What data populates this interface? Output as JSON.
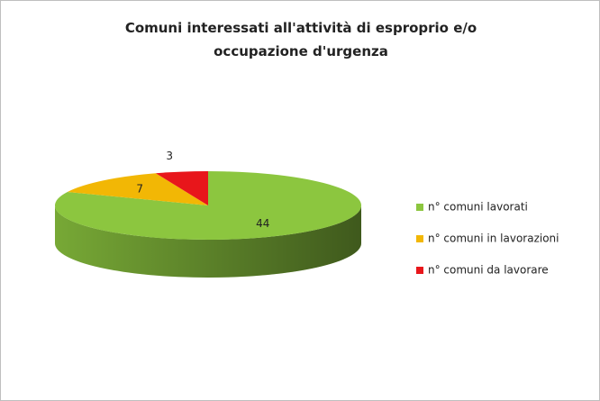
{
  "chart_data": {
    "type": "pie",
    "title": "Comuni interessati all'attività di esproprio e/o occupazione d'urgenza",
    "categories": [
      "n° comuni lavorati",
      "n° comuni in lavorazioni",
      "n° comuni da lavorare"
    ],
    "values": [
      44,
      7,
      3
    ],
    "colors": [
      "#8cc63f",
      "#f2b705",
      "#e8161b"
    ],
    "legend": "right"
  }
}
